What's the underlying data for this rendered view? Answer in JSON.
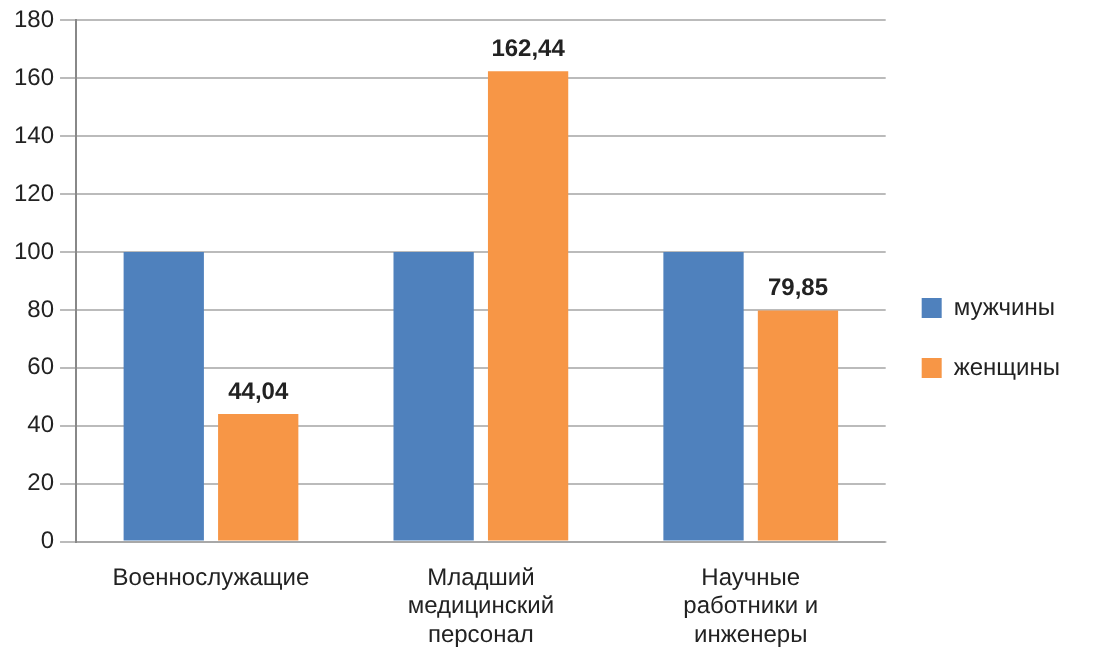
{
  "chart_data": {
    "type": "bar",
    "categories": [
      "Военнослужащие",
      "Младший медицинский персонал",
      "Научные работники и инженеры"
    ],
    "series": [
      {
        "name": "мужчины",
        "color": "#4f81bd",
        "values": [
          100,
          100,
          100
        ]
      },
      {
        "name": "женщины",
        "color": "#f79646",
        "values": [
          44.04,
          162.44,
          79.85
        ],
        "value_labels": [
          "44,04",
          "162,44",
          "79,85"
        ]
      }
    ],
    "ylim": [
      0,
      180
    ],
    "yticks": [
      0,
      20,
      40,
      60,
      80,
      100,
      120,
      140,
      160,
      180
    ],
    "grid": "y",
    "legend": "right"
  }
}
